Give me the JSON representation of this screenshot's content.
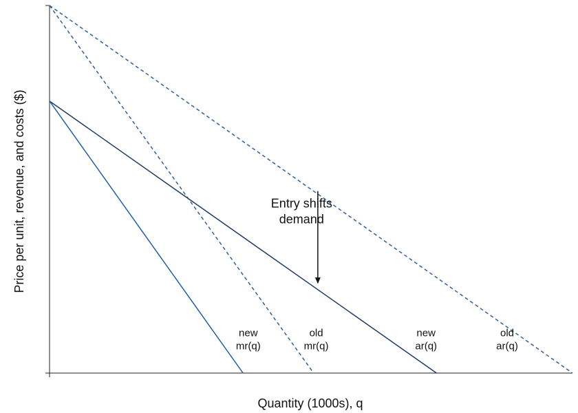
{
  "chart_data": {
    "type": "line",
    "title": "",
    "xlabel": "Quantity (1000s), q",
    "ylabel": "Price per unit, revenue, and costs ($)",
    "xlim": [
      0,
      100
    ],
    "ylim": [
      0,
      100
    ],
    "grid": false,
    "ticks": "none",
    "series": [
      {
        "key": "old_ar",
        "label_lines": [
          "old",
          "ar(q)"
        ],
        "style": "dashed",
        "color": "#2e5f9e",
        "points": [
          [
            0,
            100
          ],
          [
            100,
            0
          ]
        ],
        "label_at": [
          87.5,
          10
        ]
      },
      {
        "key": "old_mr",
        "label_lines": [
          "old",
          "mr(q)"
        ],
        "style": "dashed",
        "color": "#2e5f9e",
        "points": [
          [
            0,
            100
          ],
          [
            50.5,
            0
          ]
        ],
        "label_at": [
          51,
          10
        ]
      },
      {
        "key": "new_ar",
        "label_lines": [
          "new",
          "ar(q)"
        ],
        "style": "solid",
        "color": "#1f3b66",
        "points": [
          [
            0,
            74
          ],
          [
            74,
            0
          ]
        ],
        "label_at": [
          72,
          10
        ]
      },
      {
        "key": "new_mr",
        "label_lines": [
          "new",
          "mr(q)"
        ],
        "style": "solid",
        "color": "#1f5fa8",
        "points": [
          [
            0,
            74
          ],
          [
            37,
            0
          ]
        ],
        "label_at": [
          38,
          10
        ]
      }
    ],
    "annotations": [
      {
        "text_lines": [
          "Entry shifts",
          "demand"
        ],
        "text_at": [
          48.2,
          45
        ],
        "arrow_from": [
          51.3,
          49.5
        ],
        "arrow_to": [
          51.3,
          24.5
        ]
      }
    ]
  }
}
